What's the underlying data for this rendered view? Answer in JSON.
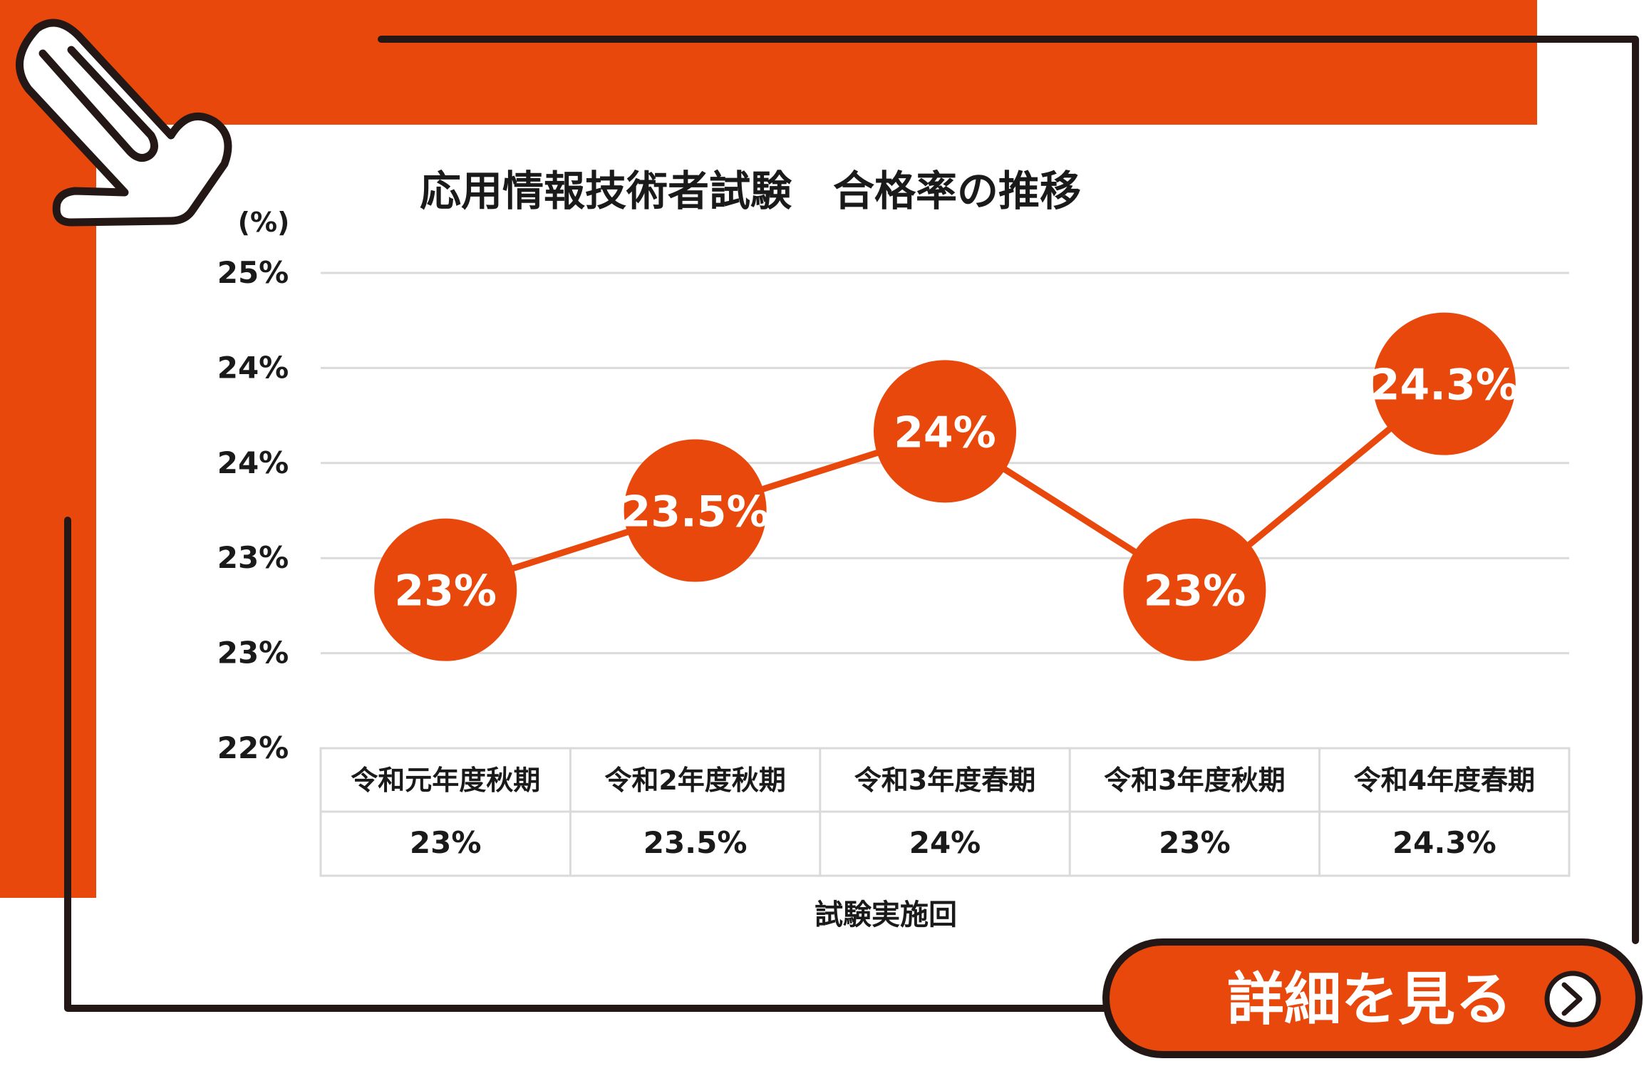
{
  "colors": {
    "accent": "#E8480C",
    "ink": "#231815",
    "grid": "#DADADA",
    "text": "#1a1a1a",
    "white": "#ffffff"
  },
  "chart_data": {
    "type": "line",
    "title": "応用情報技術者試験　合格率の推移",
    "unit_label": "(%)",
    "xlabel": "試験実施回",
    "ylabel": "",
    "y_tick_labels": [
      "25%",
      "24%",
      "24%",
      "23%",
      "23%",
      "22%"
    ],
    "ylim": [
      22,
      25
    ],
    "categories": [
      "令和元年度秋期",
      "令和2年度秋期",
      "令和3年度春期",
      "令和3年度秋期",
      "令和4年度春期"
    ],
    "values": [
      23,
      23.5,
      24,
      23,
      24.3
    ],
    "value_labels": [
      "23%",
      "23.5%",
      "24%",
      "23%",
      "24.3%"
    ],
    "grid": true,
    "legend": "none"
  },
  "cta": {
    "label": "詳細を見る",
    "icon": "chevron-right-circle-icon"
  },
  "decor": {
    "clip": "paperclip-icon"
  }
}
